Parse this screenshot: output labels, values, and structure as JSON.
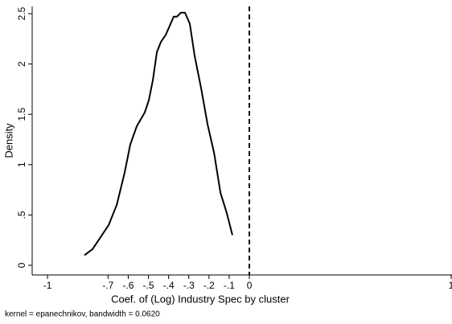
{
  "chart_data": {
    "type": "line",
    "y_label": "Density",
    "x_label": "Coef. of (Log) Industry Spec by cluster",
    "note": "kernel = epanechnikov, bandwidth = 0.0620",
    "x": [
      -0.817,
      -0.777,
      -0.737,
      -0.697,
      -0.657,
      -0.618,
      -0.59,
      -0.558,
      -0.518,
      -0.498,
      -0.478,
      -0.458,
      -0.438,
      -0.414,
      -0.39,
      -0.375,
      -0.359,
      -0.339,
      -0.319,
      -0.295,
      -0.271,
      -0.239,
      -0.207,
      -0.175,
      -0.143,
      -0.112,
      -0.084
    ],
    "series": [
      {
        "color": "#000000",
        "values": [
          0.1,
          0.16,
          0.28,
          0.4,
          0.6,
          0.92,
          1.2,
          1.38,
          1.52,
          1.64,
          1.84,
          2.12,
          2.22,
          2.29,
          2.4,
          2.47,
          2.47,
          2.51,
          2.51,
          2.4,
          2.08,
          1.76,
          1.4,
          1.12,
          0.72,
          0.52,
          0.3
        ]
      }
    ],
    "xline": 0,
    "xlim": [
      -1.076,
      1.004
    ],
    "ylim": [
      -0.096,
      2.572
    ],
    "xticks": [
      -1,
      {
        "value": -0.7,
        "label": "-.7"
      },
      {
        "value": -0.6,
        "label": "-.6"
      },
      {
        "value": -0.5,
        "label": "-.5"
      },
      {
        "value": -0.4,
        "label": "-.4"
      },
      {
        "value": -0.3,
        "label": "-.3"
      },
      {
        "value": -0.2,
        "label": "-.2"
      },
      {
        "value": -0.1,
        "label": "-.1"
      },
      0,
      1
    ],
    "yticks": [
      0,
      {
        "value": 0.5,
        "label": ".5"
      },
      1,
      1.5,
      2,
      2.5
    ]
  }
}
